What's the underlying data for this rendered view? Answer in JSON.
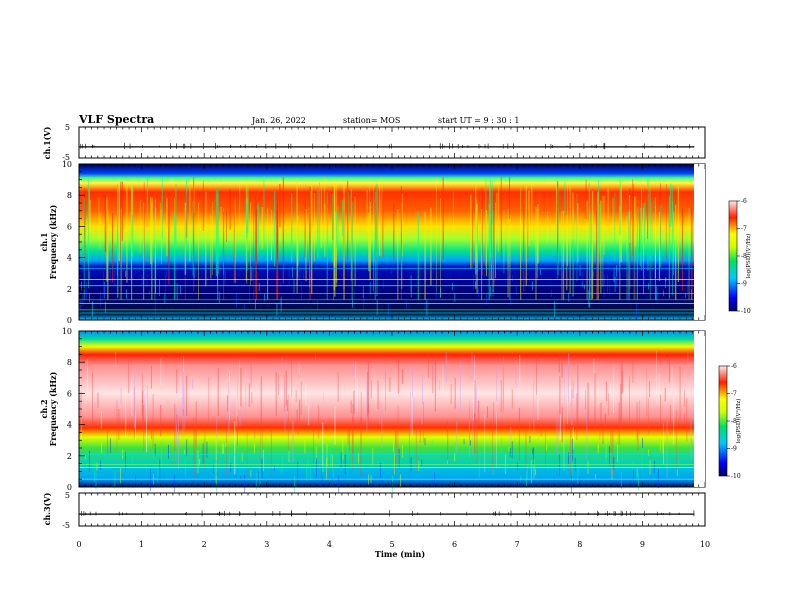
{
  "header": {
    "title": "VLF Spectra",
    "date": "Jan. 26, 2022",
    "station": "station= MOS",
    "start": "start  UT =  9 : 30 : 1"
  },
  "chart_data": {
    "type": "heatmap",
    "title": "VLF Spectra",
    "xlabel": "Time (min)",
    "xlim": [
      0,
      10
    ],
    "xticks": [
      0,
      1,
      2,
      3,
      4,
      5,
      6,
      7,
      8,
      9,
      10
    ],
    "data_end_min": 9.83,
    "panels": [
      {
        "name": "ch.1 waveform",
        "ylabel": "ch.1(V)",
        "ylim": [
          -5,
          5
        ],
        "yticks": [
          -5,
          5
        ],
        "trace_level_v": -1.4
      },
      {
        "name": "ch.1 spectrogram",
        "ylabel_top": "ch.1",
        "ylabel": "Frequency (kHz)",
        "ylim": [
          0,
          10
        ],
        "yticks": [
          0,
          2,
          4,
          6,
          8,
          10
        ],
        "dominant_band_khz": [
          4.5,
          9.2
        ],
        "quiet_band_khz": [
          0.8,
          3.8
        ],
        "narrowband_lines_khz": [
          0.45,
          0.65,
          1.05,
          1.3,
          1.7,
          2.2,
          2.6,
          3.3
        ],
        "colorbar": {
          "label": "log(PSD)(V²/Hz)",
          "ticks": [
            -6,
            -7,
            -8,
            -9,
            -10
          ],
          "range": [
            -10,
            -6
          ]
        }
      },
      {
        "name": "ch.2 spectrogram",
        "ylabel_top": "ch.2",
        "ylabel": "Frequency (kHz)",
        "ylim": [
          0,
          10
        ],
        "yticks": [
          0,
          2,
          4,
          6,
          8,
          10
        ],
        "dominant_band_khz": [
          3.8,
          8.6
        ],
        "quiet_band_khz": [
          1.5,
          3.0
        ],
        "narrowband_lines_khz": [
          0.5,
          1.25,
          1.45,
          2.1
        ],
        "colorbar": {
          "label": "log(PSD)(V²/Hz)",
          "ticks": [
            -6,
            -7,
            -8,
            -9,
            -10
          ],
          "range": [
            -10,
            -6
          ]
        }
      },
      {
        "name": "ch.3 waveform",
        "ylabel": "ch.3(V)",
        "ylim": [
          -5,
          5
        ],
        "yticks": [
          -5,
          5
        ],
        "trace_level_v": -1.4
      }
    ]
  }
}
